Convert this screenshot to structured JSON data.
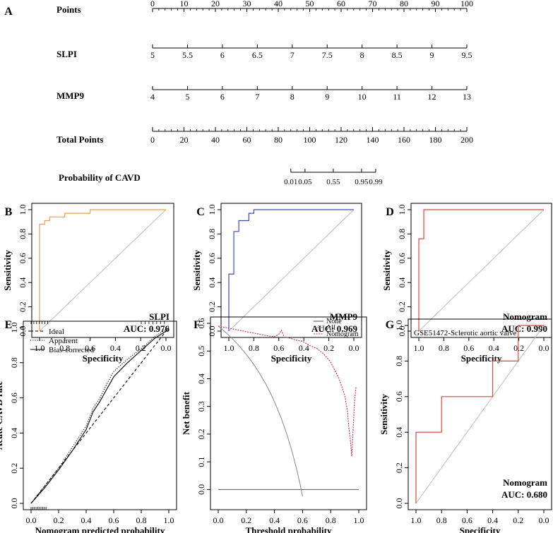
{
  "chart_data": [
    {
      "panel": "A",
      "type": "nomogram",
      "scales": [
        {
          "label": "Points",
          "min": 0,
          "max": 100,
          "major": [
            0,
            10,
            20,
            30,
            40,
            50,
            60,
            70,
            80,
            90,
            100
          ],
          "tick_labels": [
            "0",
            "10",
            "20",
            "30",
            "40",
            "50",
            "60",
            "70",
            "80",
            "90",
            "100"
          ],
          "minor_step": 2
        },
        {
          "label": "SLPI",
          "min": 5,
          "max": 9.5,
          "major": [
            5,
            5.5,
            6,
            6.5,
            7,
            7.5,
            8,
            8.5,
            9,
            9.5
          ],
          "tick_labels": [
            "5",
            "5.5",
            "6",
            "6.5",
            "7",
            "7.5",
            "8",
            "8.5",
            "9",
            "9.5"
          ]
        },
        {
          "label": "MMP9",
          "min": 4,
          "max": 13,
          "major": [
            4,
            5,
            6,
            7,
            8,
            9,
            10,
            11,
            12,
            13
          ],
          "tick_labels": [
            "4",
            "5",
            "6",
            "7",
            "8",
            "9",
            "10",
            "11",
            "12",
            "13"
          ]
        },
        {
          "label": "Total Points",
          "min": 0,
          "max": 200,
          "major": [
            0,
            20,
            40,
            60,
            80,
            100,
            120,
            140,
            160,
            180,
            200
          ],
          "tick_labels": [
            "0",
            "20",
            "40",
            "60",
            "80",
            "100",
            "120",
            "140",
            "160",
            "180",
            "200"
          ],
          "minor_step": 4
        },
        {
          "label": "Probability of CAVD",
          "total_points_positions": [
            88,
            97,
            115,
            133,
            142
          ],
          "tick_labels": [
            "0.01",
            "0.05",
            "0.55",
            "0.95",
            "0.99"
          ]
        }
      ]
    },
    {
      "panel": "B",
      "type": "roc",
      "title": "SLPI",
      "auc_text": "AUC: 0.976",
      "color": "#E8A23C",
      "xlabel": "Specificity",
      "ylabel": "Sensitivity",
      "xlim": [
        1.0,
        0.0
      ],
      "ylim": [
        0,
        1
      ],
      "xticks": [
        "1.0",
        "0.8",
        "0.6",
        "0.4",
        "0.2",
        "0.0"
      ],
      "yticks": [
        "0.0",
        "0.2",
        "0.4",
        "0.6",
        "0.8",
        "1.0"
      ],
      "specificity": [
        1.0,
        1.0,
        0.96,
        0.96,
        0.92,
        0.92,
        0.8,
        0.8,
        0.6,
        0.6,
        0.0
      ],
      "sensitivity": [
        0.0,
        0.88,
        0.88,
        0.91,
        0.91,
        0.94,
        0.94,
        0.97,
        0.97,
        1.0,
        1.0
      ]
    },
    {
      "panel": "C",
      "type": "roc",
      "title": "MMP9",
      "auc_text": "AUC: 0.969",
      "color": "#3B4CC0",
      "xlabel": "Specificity",
      "ylabel": "Sensitivity",
      "xlim": [
        1.0,
        0.0
      ],
      "ylim": [
        0,
        1
      ],
      "xticks": [
        "1.0",
        "0.8",
        "0.6",
        "0.4",
        "0.2",
        "0.0"
      ],
      "yticks": [
        "0.0",
        "0.2",
        "0.4",
        "0.6",
        "0.8",
        "1.0"
      ],
      "specificity": [
        1.0,
        1.0,
        0.96,
        0.96,
        0.92,
        0.92,
        0.84,
        0.84,
        0.8,
        0.8,
        0.0
      ],
      "sensitivity": [
        0.0,
        0.47,
        0.47,
        0.82,
        0.82,
        0.91,
        0.91,
        0.97,
        0.97,
        1.0,
        1.0
      ]
    },
    {
      "panel": "D",
      "type": "roc",
      "title": "Nomogram",
      "auc_text": "AUC: 0.990",
      "color": "#E0453A",
      "xlabel": "Specificity",
      "ylabel": "Sensitivity",
      "xlim": [
        1.0,
        0.0
      ],
      "ylim": [
        0,
        1
      ],
      "xticks": [
        "1.0",
        "0.8",
        "0.6",
        "0.4",
        "0.2",
        "0.0"
      ],
      "yticks": [
        "0.0",
        "0.2",
        "0.4",
        "0.6",
        "0.8",
        "1.0"
      ],
      "specificity": [
        1.0,
        1.0,
        0.96,
        0.96,
        0.0
      ],
      "sensitivity": [
        0.0,
        0.76,
        0.76,
        1.0,
        1.0
      ]
    },
    {
      "panel": "E",
      "type": "line",
      "title": "",
      "xlabel": "Nomogram predicted probability",
      "ylabel": "Acute CAVD rate",
      "xlim": [
        0,
        1
      ],
      "ylim": [
        0,
        1
      ],
      "xticks": [
        "0.0",
        "0.2",
        "0.4",
        "0.6",
        "0.8",
        "1.0"
      ],
      "yticks": [
        "0.0",
        "0.2",
        "0.4",
        "0.6",
        "0.8",
        "1.0"
      ],
      "legend": [
        "Ideal",
        "Apparent",
        "Bias-corrected"
      ],
      "series": [
        {
          "name": "Ideal",
          "style": "dashed",
          "x": [
            0,
            1
          ],
          "y": [
            0,
            1
          ]
        },
        {
          "name": "Apparent",
          "style": "dotted",
          "x": [
            0.0,
            0.1,
            0.2,
            0.3,
            0.4,
            0.45,
            0.5,
            0.55,
            0.6,
            0.7,
            0.8,
            0.9,
            1.0
          ],
          "y": [
            0.0,
            0.1,
            0.2,
            0.32,
            0.44,
            0.54,
            0.6,
            0.68,
            0.75,
            0.82,
            0.88,
            0.95,
            1.0
          ]
        },
        {
          "name": "Bias-corrected",
          "style": "solid",
          "x": [
            0.0,
            0.1,
            0.2,
            0.3,
            0.4,
            0.45,
            0.5,
            0.55,
            0.6,
            0.7,
            0.8,
            0.9,
            1.0
          ],
          "y": [
            0.0,
            0.09,
            0.19,
            0.3,
            0.42,
            0.52,
            0.58,
            0.65,
            0.72,
            0.8,
            0.87,
            0.94,
            0.99
          ]
        }
      ]
    },
    {
      "panel": "F",
      "type": "line",
      "title": "",
      "xlabel": "Threshold probability",
      "ylabel": "Net benefit",
      "xlim": [
        0,
        1
      ],
      "ylim": [
        -0.05,
        0.6
      ],
      "xticks": [
        "0.0",
        "0.2",
        "0.4",
        "0.6",
        "0.8",
        "1.0"
      ],
      "yticks": [
        "0.0",
        "0.1",
        "0.2",
        "0.3",
        "0.4",
        "0.5",
        "0.6"
      ],
      "legend": [
        "None",
        "All",
        "Nomogram"
      ],
      "series": [
        {
          "name": "None",
          "color": "#555555",
          "x": [
            0,
            1
          ],
          "y": [
            0,
            0
          ]
        },
        {
          "name": "All",
          "color": "#888888",
          "prevalence": 0.59
        },
        {
          "name": "Nomogram",
          "color": "#C0396B",
          "style": "dotted",
          "x": [
            0.0,
            0.05,
            0.1,
            0.15,
            0.2,
            0.25,
            0.3,
            0.35,
            0.4,
            0.43,
            0.45,
            0.47,
            0.5,
            0.55,
            0.6,
            0.65,
            0.7,
            0.75,
            0.8,
            0.83,
            0.86,
            0.88,
            0.9,
            0.92,
            0.93,
            0.94,
            0.95,
            0.96,
            0.97,
            0.98
          ],
          "y": [
            0.59,
            0.585,
            0.58,
            0.575,
            0.57,
            0.565,
            0.56,
            0.555,
            0.552,
            0.56,
            0.575,
            0.55,
            0.548,
            0.54,
            0.535,
            0.52,
            0.51,
            0.49,
            0.46,
            0.43,
            0.4,
            0.37,
            0.34,
            0.28,
            0.22,
            0.18,
            0.12,
            0.22,
            0.32,
            0.37
          ]
        }
      ]
    },
    {
      "panel": "G",
      "type": "roc",
      "title": "GSE51472-Sclerotic aortic valve",
      "model": "Nomogram",
      "auc_text": "AUC: 0.680",
      "color": "#E0453A",
      "xlabel": "Specificity",
      "ylabel": "Sensitivity",
      "xlim": [
        1.0,
        0.0
      ],
      "ylim": [
        0,
        1
      ],
      "xticks": [
        "1.0",
        "0.8",
        "0.6",
        "0.4",
        "0.2",
        "0.0"
      ],
      "yticks": [
        "0.0",
        "0.2",
        "0.4",
        "0.6",
        "0.8",
        "1.0"
      ],
      "specificity": [
        1.0,
        1.0,
        0.8,
        0.8,
        0.4,
        0.4,
        0.2,
        0.2,
        0.0
      ],
      "sensitivity": [
        0.0,
        0.4,
        0.4,
        0.6,
        0.6,
        0.8,
        0.8,
        1.0,
        1.0
      ]
    }
  ]
}
